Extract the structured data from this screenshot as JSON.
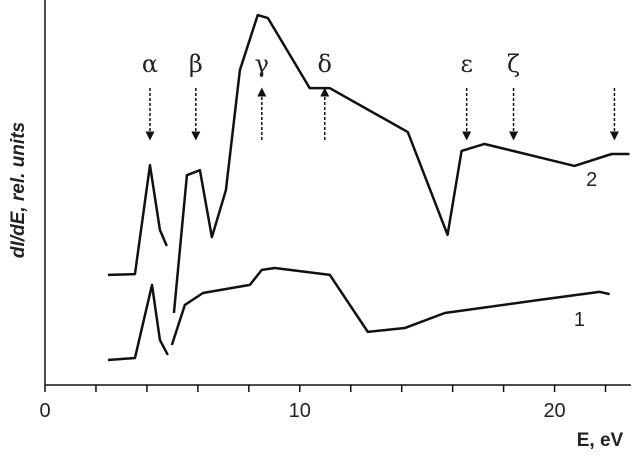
{
  "chart_data": {
    "type": "line",
    "xlabel": "E, eV",
    "ylabel": "dI/dE, rel. units",
    "xlim": [
      0,
      23
    ],
    "ylim": [
      0,
      100
    ],
    "xticks": [
      0,
      10,
      20
    ],
    "xminor_ticks": [
      2,
      4,
      6,
      8,
      12,
      14,
      16,
      18,
      22
    ],
    "color": "#111111",
    "series": [
      {
        "name": "2",
        "x": [
          2.47,
          3.53,
          4.12,
          4.51,
          4.78,
          null,
          5.06,
          5.57,
          6.08,
          6.55,
          7.1,
          7.65,
          8.35,
          8.75,
          10.39,
          11.18,
          14.24,
          15.8,
          16.35,
          17.25,
          20.78,
          22.24,
          22.94
        ],
        "values": [
          28.6,
          28.8,
          57.1,
          40.3,
          36.1,
          null,
          18.7,
          54.5,
          55.8,
          38.4,
          50.6,
          81.8,
          96.1,
          95.3,
          77.1,
          77.1,
          65.7,
          39.0,
          60.8,
          62.6,
          56.9,
          60.0,
          60.0
        ]
      },
      {
        "name": "1",
        "x": [
          2.47,
          3.53,
          4.2,
          4.51,
          4.82,
          null,
          4.98,
          5.49,
          6.2,
          8.04,
          8.51,
          9.02,
          11.18,
          12.67,
          14.12,
          15.69,
          19.41,
          21.76,
          22.16
        ],
        "values": [
          6.5,
          7.0,
          26.0,
          11.7,
          7.8,
          null,
          10.4,
          20.8,
          23.9,
          26.0,
          29.9,
          30.4,
          28.6,
          13.8,
          14.8,
          18.7,
          22.1,
          24.2,
          23.6
        ]
      }
    ],
    "annotations": [
      {
        "text": "α",
        "x": 4.12,
        "direction": "down"
      },
      {
        "text": "β",
        "x": 5.92,
        "direction": "down"
      },
      {
        "text": "γ",
        "x": 8.51,
        "direction": "up"
      },
      {
        "text": "δ",
        "x": 10.98,
        "direction": "up"
      },
      {
        "text": "ε",
        "x": 16.55,
        "direction": "down"
      },
      {
        "text": "ζ",
        "x": 18.39,
        "direction": "down"
      },
      {
        "x": 22.35,
        "direction": "down"
      }
    ]
  }
}
